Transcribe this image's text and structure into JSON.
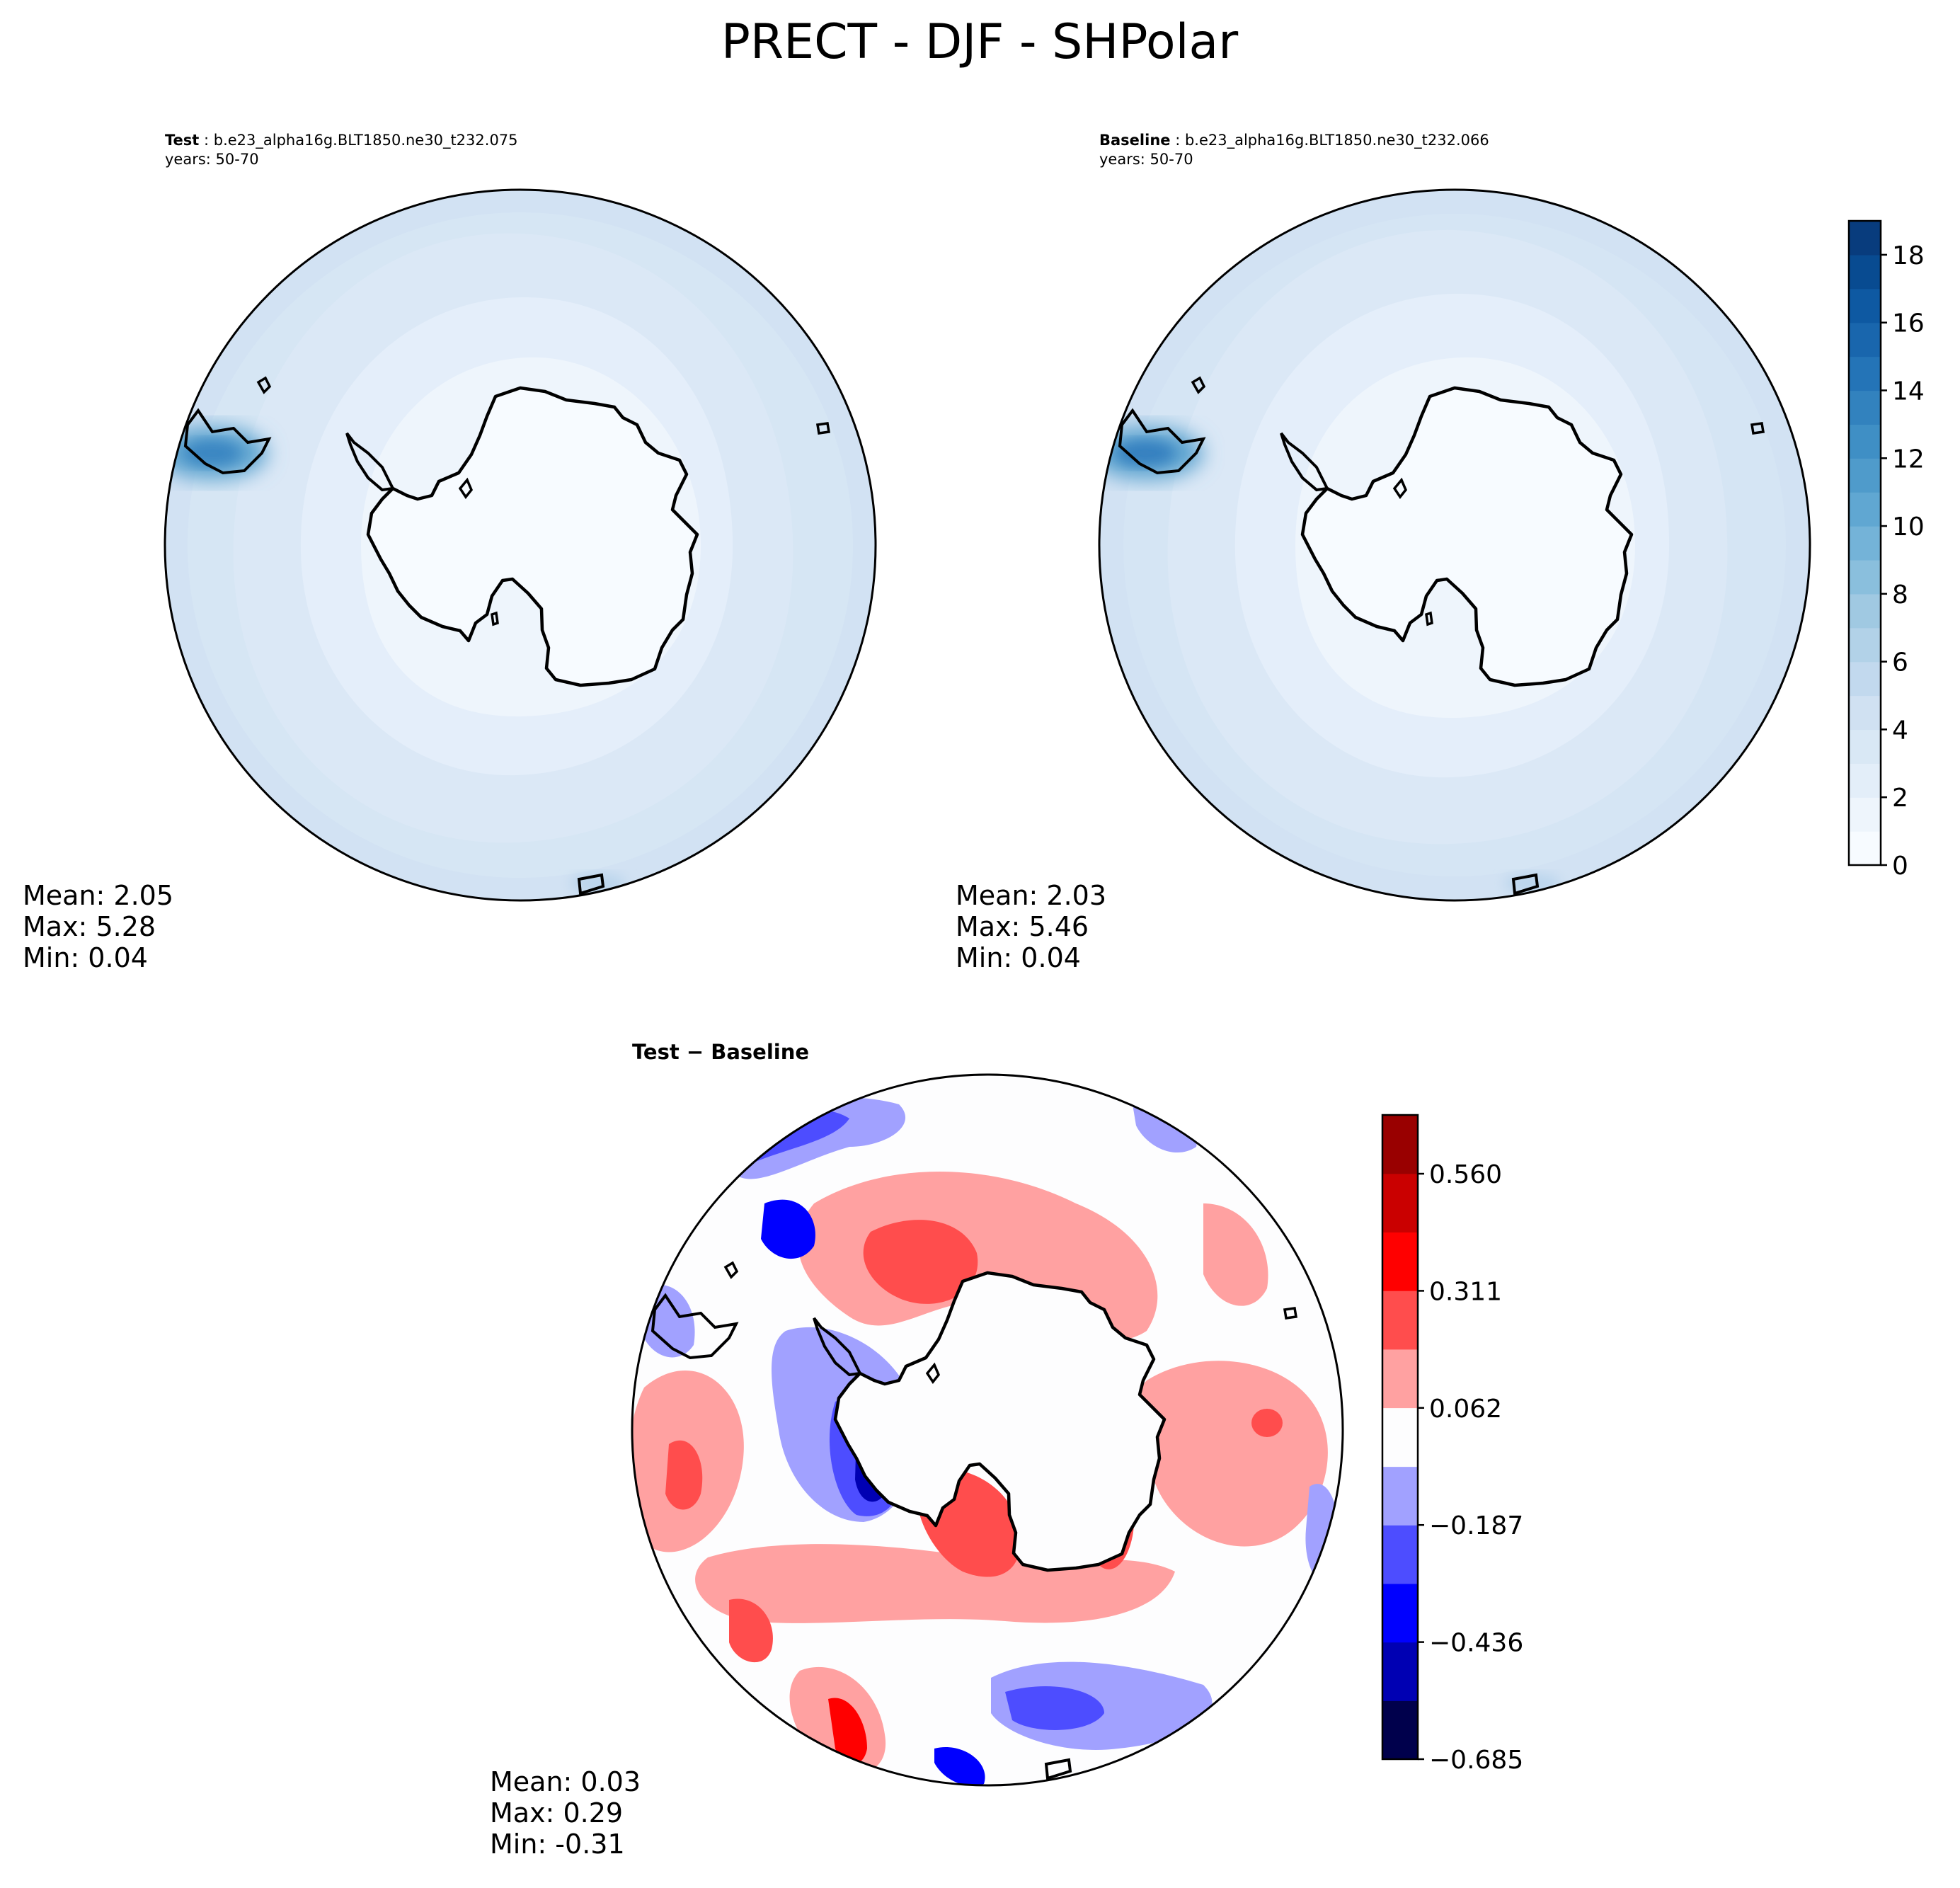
{
  "figure": {
    "title": "PRECT - DJF - SHPolar"
  },
  "chart_data": [
    {
      "type": "heatmap",
      "projection": "south-polar-stereographic",
      "panel": "test",
      "title_bold": "Test",
      "title_rest": " : b.e23_alpha16g.BLT1850.ne30_t232.075",
      "years": "years: 50-70",
      "stats": {
        "mean": "Mean:  2.05",
        "max": "Max:  5.28",
        "min": "Min:  0.04"
      },
      "field_description": "Precipitation mostly 0-4, lowest over Antarctica, peak near southern South America"
    },
    {
      "type": "heatmap",
      "projection": "south-polar-stereographic",
      "panel": "baseline",
      "title_bold": "Baseline",
      "title_rest": " : b.e23_alpha16g.BLT1850.ne30_t232.066",
      "years": "years: 50-70",
      "stats": {
        "mean": "Mean:  2.03",
        "max": "Max:  5.46",
        "min": "Min:  0.04"
      }
    },
    {
      "type": "heatmap",
      "projection": "south-polar-stereographic",
      "panel": "difference",
      "title_bold": "Test − Baseline",
      "stats": {
        "mean": "Mean:  0.03",
        "max": "Max:  0.29",
        "min": "Min: -0.31"
      }
    }
  ],
  "colorbars": {
    "precip": {
      "range": [
        0,
        19
      ],
      "levels": 19,
      "ticks": [
        0,
        2,
        4,
        6,
        8,
        10,
        12,
        14,
        16,
        18
      ],
      "tick_labels": [
        "0",
        "2",
        "4",
        "6",
        "8",
        "10",
        "12",
        "14",
        "16",
        "18"
      ],
      "colors": [
        "#f7fbff",
        "#eef5fc",
        "#e3eef9",
        "#d9e8f5",
        "#d0e1f2",
        "#c2d9ee",
        "#b2d2e8",
        "#a0c9e2",
        "#8abfdd",
        "#74b3d8",
        "#60a7d2",
        "#4f9bcb",
        "#3f8fc5",
        "#3282be",
        "#2474b7",
        "#1966ad",
        "#0e59a2",
        "#084b91",
        "#083c7d"
      ]
    },
    "diff": {
      "range": [
        -0.685,
        0.685
      ],
      "boundaries": [
        -0.685,
        -0.5605,
        -0.436,
        -0.3115,
        -0.187,
        -0.0625,
        0.0625,
        0.187,
        0.3115,
        0.436,
        0.5605,
        0.685
      ],
      "ticks": [
        -0.685,
        -0.436,
        -0.187,
        0.062,
        0.311,
        0.56
      ],
      "tick_labels": [
        "−0.685",
        "−0.436",
        "−0.187",
        "0.062",
        "0.311",
        "0.560"
      ],
      "colors": [
        "#00004c",
        "#0000b3",
        "#0000ff",
        "#4d4dff",
        "#a1a1ff",
        "#fdfdfe",
        "#ffa1a1",
        "#ff4d4d",
        "#ff0000",
        "#ca0000",
        "#990000"
      ]
    }
  },
  "colors": {
    "coastline": "#000000",
    "frame": "#000000"
  }
}
